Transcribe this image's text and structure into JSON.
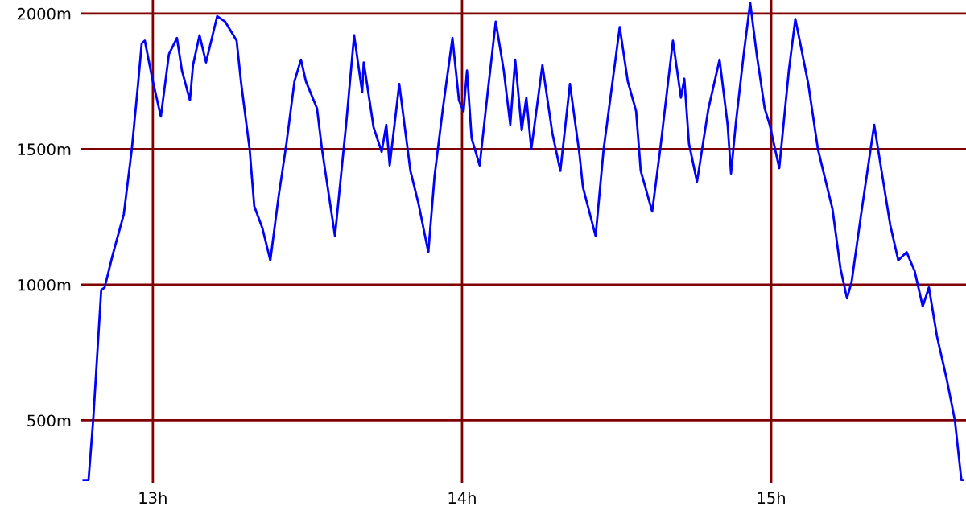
{
  "chart_data": {
    "type": "line",
    "x": [
      12.776,
      12.792,
      12.807,
      12.833,
      12.844,
      12.87,
      12.906,
      12.932,
      12.953,
      12.964,
      12.974,
      13.0,
      13.026,
      13.052,
      13.078,
      13.094,
      13.12,
      13.13,
      13.151,
      13.172,
      13.208,
      13.234,
      13.271,
      13.286,
      13.313,
      13.328,
      13.354,
      13.38,
      13.406,
      13.432,
      13.458,
      13.479,
      13.495,
      13.531,
      13.547,
      13.589,
      13.625,
      13.651,
      13.677,
      13.682,
      13.714,
      13.74,
      13.755,
      13.766,
      13.797,
      13.833,
      13.859,
      13.891,
      13.911,
      13.938,
      13.969,
      13.99,
      14.005,
      14.016,
      14.031,
      14.057,
      14.083,
      14.109,
      14.135,
      14.156,
      14.172,
      14.193,
      14.208,
      14.224,
      14.26,
      14.292,
      14.318,
      14.349,
      14.38,
      14.391,
      14.432,
      14.458,
      14.51,
      14.536,
      14.563,
      14.578,
      14.615,
      14.641,
      14.682,
      14.708,
      14.719,
      14.734,
      14.76,
      14.797,
      14.833,
      14.859,
      14.87,
      14.885,
      14.911,
      14.932,
      14.953,
      14.979,
      14.995,
      15.026,
      15.057,
      15.078,
      15.094,
      15.12,
      15.151,
      15.198,
      15.224,
      15.245,
      15.26,
      15.292,
      15.333,
      15.354,
      15.385,
      15.411,
      15.438,
      15.464,
      15.49,
      15.51,
      15.536,
      15.568,
      15.594,
      15.615,
      15.62
    ],
    "series": [
      {
        "color": "#0000ff",
        "values": [
          280,
          280,
          500,
          980,
          990,
          1110,
          1260,
          1500,
          1750,
          1890,
          1900,
          1750,
          1620,
          1850,
          1910,
          1790,
          1680,
          1810,
          1920,
          1820,
          1990,
          1970,
          1900,
          1740,
          1500,
          1290,
          1210,
          1090,
          1320,
          1520,
          1750,
          1830,
          1750,
          1650,
          1500,
          1180,
          1590,
          1920,
          1710,
          1820,
          1580,
          1490,
          1590,
          1440,
          1740,
          1420,
          1300,
          1120,
          1400,
          1650,
          1910,
          1680,
          1640,
          1790,
          1540,
          1440,
          1710,
          1970,
          1790,
          1590,
          1830,
          1570,
          1690,
          1500,
          1810,
          1560,
          1420,
          1740,
          1480,
          1360,
          1180,
          1500,
          1950,
          1750,
          1640,
          1420,
          1270,
          1500,
          1900,
          1690,
          1760,
          1520,
          1380,
          1650,
          1830,
          1590,
          1410,
          1590,
          1850,
          2040,
          1850,
          1650,
          1590,
          1430,
          1790,
          1980,
          1890,
          1740,
          1500,
          1280,
          1060,
          950,
          1010,
          1270,
          1590,
          1440,
          1220,
          1090,
          1120,
          1050,
          920,
          990,
          810,
          650,
          500,
          280,
          280
        ]
      }
    ],
    "xlim": [
      12.766,
      15.63
    ],
    "ylim": [
      270,
      2050
    ],
    "xticks": [
      {
        "value": 13,
        "label": "13h"
      },
      {
        "value": 14,
        "label": "14h"
      },
      {
        "value": 15,
        "label": "15h"
      }
    ],
    "yticks": [
      {
        "value": 500,
        "label": "500m"
      },
      {
        "value": 1000,
        "label": "1000m"
      },
      {
        "value": 1500,
        "label": "1500m"
      },
      {
        "value": 2000,
        "label": "2000m"
      }
    ],
    "grid": true,
    "marker": "none",
    "line_style": "solid"
  }
}
